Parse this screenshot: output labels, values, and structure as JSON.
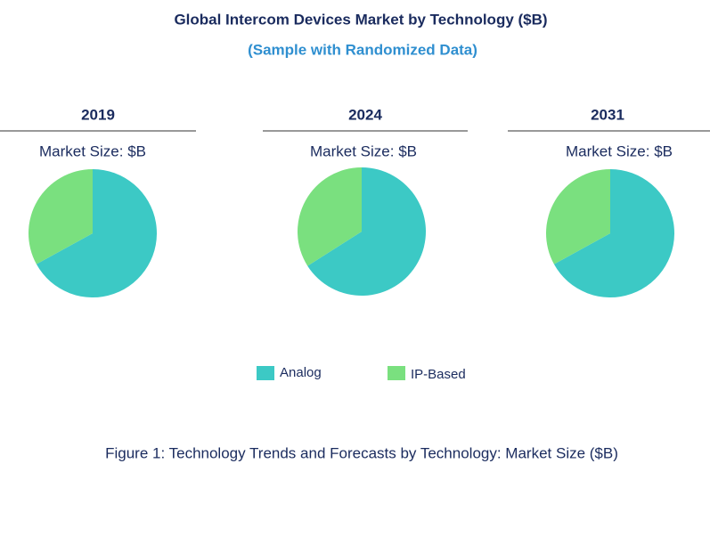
{
  "title": "Global Intercom Devices Market by Technology ($B)",
  "subtitle": "(Sample with Randomized Data)",
  "caption": "Figure 1: Technology Trends and Forecasts by Technology: Market Size ($B)",
  "chart_data": [
    {
      "type": "pie",
      "title": "2019",
      "subtitle": "Market Size: $B",
      "categories": [
        "Analog",
        "IP-Based"
      ],
      "values": [
        67,
        33
      ],
      "colors": [
        "#3cc9c5",
        "#7ae07f"
      ]
    },
    {
      "type": "pie",
      "title": "2024",
      "subtitle": "Market Size: $B",
      "categories": [
        "Analog",
        "IP-Based"
      ],
      "values": [
        66,
        34
      ],
      "colors": [
        "#3cc9c5",
        "#7ae07f"
      ]
    },
    {
      "type": "pie",
      "title": "2031",
      "subtitle": "Market Size: $B",
      "categories": [
        "Analog",
        "IP-Based"
      ],
      "values": [
        67,
        33
      ],
      "colors": [
        "#3cc9c5",
        "#7ae07f"
      ]
    }
  ]
}
